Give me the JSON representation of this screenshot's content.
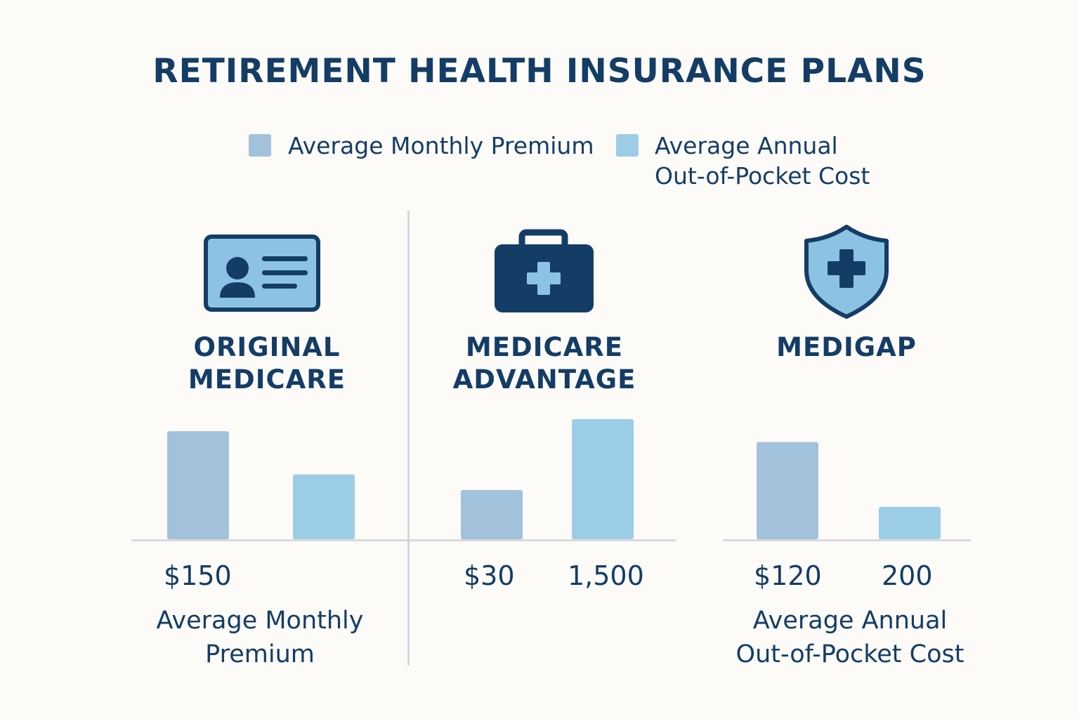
{
  "colors": {
    "premium": "#a2c2db",
    "out_of_pocket": "#9ccde6",
    "dark": "#143d66",
    "light_icon": "#8cc3e4"
  },
  "icons": [
    "id-card-icon",
    "medical-bag-icon",
    "shield-plus-icon"
  ],
  "chart_data": {
    "type": "bar",
    "title": "RETIREMENT HEALTH INSURANCE PLANS",
    "legend": [
      "Average Monthly Premium",
      "Average Annual Out-of-Pocket Cost"
    ],
    "categories": [
      "ORIGINAL MEDICARE",
      "MEDICARE ADVANTAGE",
      "MEDIGAP"
    ],
    "series": [
      {
        "name": "Average Monthly Premium",
        "values": [
          150,
          30,
          120
        ]
      },
      {
        "name": "Average Annual Out-of-Pocket Cost",
        "values": [
          800,
          1500,
          200
        ]
      }
    ],
    "bar_fraction": [
      [
        0.9,
        0.54
      ],
      [
        0.41,
        1.0
      ],
      [
        0.81,
        0.27
      ]
    ],
    "value_labels": [
      [
        "$150",
        ""
      ],
      [
        "$30",
        "1,500"
      ],
      [
        "$120",
        "200"
      ]
    ],
    "sub_labels": [
      "Average Monthly Premium",
      "",
      "Average Annual Out-of-Pocket Cost"
    ]
  },
  "legend": {
    "premium": "Average Monthly Premium",
    "oop_line1": "Average Annual",
    "oop_line2": "Out-of-Pocket Cost"
  },
  "plans": [
    {
      "name_line1": "ORIGINAL",
      "name_line2": "MEDICARE"
    },
    {
      "name_line1": "MEDICARE",
      "name_line2": "ADVANTAGE"
    },
    {
      "name_line1": "MEDIGAP",
      "name_line2": ""
    }
  ],
  "labels": {
    "orig_premium": "$150",
    "adv_premium": "$30",
    "adv_oop": "1,500",
    "gap_premium": "$120",
    "gap_oop": "200",
    "left_sub_line1": "Average Monthly",
    "left_sub_line2": "Premium",
    "right_sub_line1": "Average Annual",
    "right_sub_line2": "Out-of-Pocket Cost"
  }
}
